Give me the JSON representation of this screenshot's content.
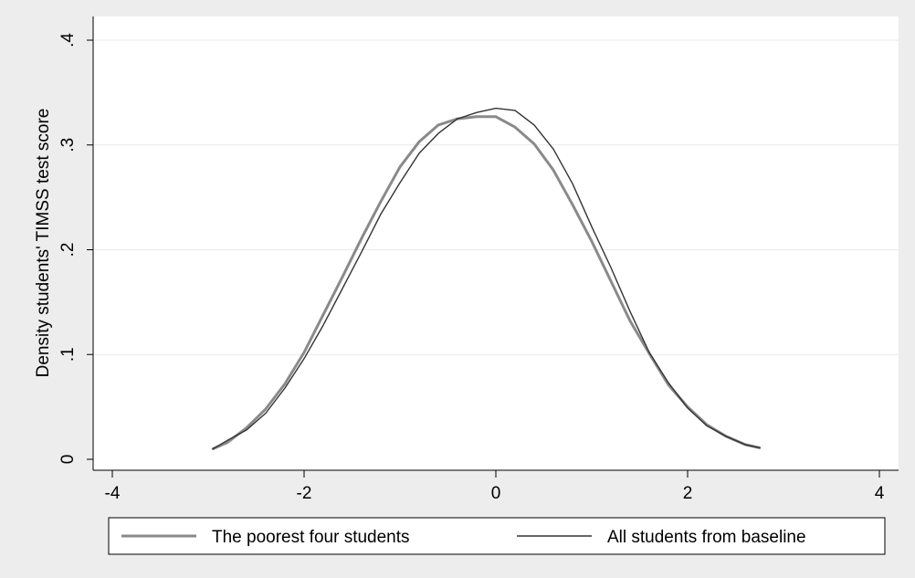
{
  "chart_data": {
    "type": "line",
    "ylabel": "Density students' TIMSS test score",
    "xlabel": "",
    "xlim": [
      -4.2,
      4.2
    ],
    "ylim": [
      0,
      0.4
    ],
    "x_ticks": [
      -4,
      -2,
      0,
      2,
      4
    ],
    "x_tick_labels": [
      "-4",
      "-2",
      "0",
      "2",
      "4"
    ],
    "y_ticks": [
      0,
      0.1,
      0.2,
      0.3,
      0.4
    ],
    "y_tick_labels": [
      "0",
      ".1",
      ".2",
      ".3",
      ".4"
    ],
    "grid": "horizontal",
    "legend_position": "bottom",
    "series": [
      {
        "name": "The poorest four students",
        "color": "#8a8a8a",
        "x": [
          -2.95,
          -2.8,
          -2.6,
          -2.4,
          -2.2,
          -2.0,
          -1.8,
          -1.6,
          -1.4,
          -1.2,
          -1.0,
          -0.8,
          -0.6,
          -0.4,
          -0.2,
          0.0,
          0.2,
          0.4,
          0.6,
          0.8,
          1.0,
          1.2,
          1.4,
          1.6,
          1.8,
          2.0,
          2.2,
          2.4,
          2.6,
          2.75
        ],
        "y": [
          0.01,
          0.016,
          0.03,
          0.048,
          0.072,
          0.102,
          0.138,
          0.174,
          0.211,
          0.246,
          0.279,
          0.303,
          0.319,
          0.325,
          0.327,
          0.327,
          0.317,
          0.301,
          0.276,
          0.243,
          0.208,
          0.17,
          0.132,
          0.101,
          0.071,
          0.05,
          0.033,
          0.022,
          0.014,
          0.011
        ]
      },
      {
        "name": "All students from baseline",
        "color": "#333333",
        "x": [
          -2.95,
          -2.8,
          -2.6,
          -2.4,
          -2.2,
          -2.0,
          -1.8,
          -1.6,
          -1.4,
          -1.2,
          -1.0,
          -0.8,
          -0.6,
          -0.4,
          -0.2,
          0.0,
          0.2,
          0.4,
          0.6,
          0.8,
          1.0,
          1.2,
          1.4,
          1.6,
          1.8,
          2.0,
          2.2,
          2.4,
          2.6,
          2.75
        ],
        "y": [
          0.01,
          0.018,
          0.028,
          0.044,
          0.068,
          0.096,
          0.128,
          0.163,
          0.198,
          0.234,
          0.264,
          0.292,
          0.311,
          0.325,
          0.331,
          0.335,
          0.333,
          0.319,
          0.296,
          0.263,
          0.222,
          0.183,
          0.141,
          0.102,
          0.073,
          0.049,
          0.032,
          0.022,
          0.014,
          0.011
        ]
      }
    ]
  }
}
